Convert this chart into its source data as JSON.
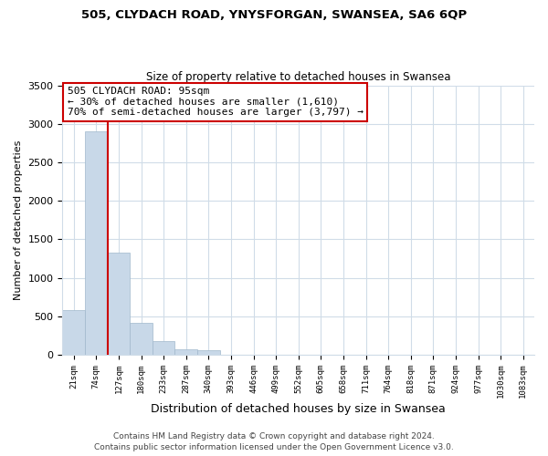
{
  "title1": "505, CLYDACH ROAD, YNYSFORGAN, SWANSEA, SA6 6QP",
  "title2": "Size of property relative to detached houses in Swansea",
  "xlabel": "Distribution of detached houses by size in Swansea",
  "ylabel": "Number of detached properties",
  "bar_labels": [
    "21sqm",
    "74sqm",
    "127sqm",
    "180sqm",
    "233sqm",
    "287sqm",
    "340sqm",
    "393sqm",
    "446sqm",
    "499sqm",
    "552sqm",
    "605sqm",
    "658sqm",
    "711sqm",
    "764sqm",
    "818sqm",
    "871sqm",
    "924sqm",
    "977sqm",
    "1030sqm",
    "1083sqm"
  ],
  "bar_values": [
    580,
    2900,
    1330,
    420,
    175,
    70,
    55,
    0,
    0,
    0,
    0,
    0,
    0,
    0,
    0,
    0,
    0,
    0,
    0,
    0,
    0
  ],
  "bar_color": "#c8d8e8",
  "bar_edge_color": "#a0b8cc",
  "annotation_line1": "505 CLYDACH ROAD: 95sqm",
  "annotation_line2": "← 30% of detached houses are smaller (1,610)",
  "annotation_line3": "70% of semi-detached houses are larger (3,797) →",
  "vline_x": 1.5,
  "vline_color": "#cc0000",
  "ylim": [
    0,
    3500
  ],
  "yticks": [
    0,
    500,
    1000,
    1500,
    2000,
    2500,
    3000,
    3500
  ],
  "footer1": "Contains HM Land Registry data © Crown copyright and database right 2024.",
  "footer2": "Contains public sector information licensed under the Open Government Licence v3.0.",
  "bg_color": "#ffffff",
  "grid_color": "#d0dce8",
  "annotation_box_color": "#ffffff",
  "annotation_box_edge_color": "#cc0000"
}
